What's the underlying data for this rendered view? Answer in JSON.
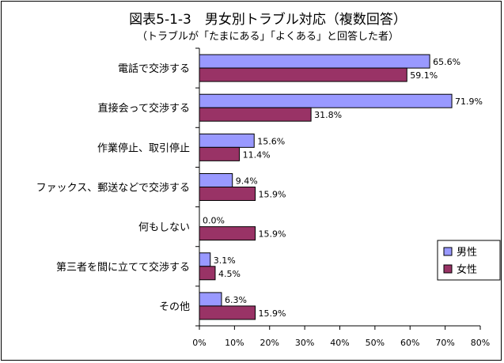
{
  "chart_data": {
    "type": "bar",
    "orientation": "horizontal",
    "title": "図表5-1-3　男女別トラブル対応（複数回答）",
    "subtitle": "（トラブルが「たまにある」「よくある」と回答した者）",
    "categories": [
      "電話で交渉する",
      "直接会って交渉する",
      "作業停止、取引停止",
      "ファックス、郵送などで交渉する",
      "何もしない",
      "第三者を間に立てて交渉する",
      "その他"
    ],
    "series": [
      {
        "name": "男性",
        "values": [
          65.6,
          71.9,
          15.6,
          9.4,
          0.0,
          3.1,
          6.3
        ],
        "labels": [
          "65.6%",
          "71.9%",
          "15.6%",
          "9.4%",
          "0.0%",
          "3.1%",
          "6.3%"
        ],
        "color": "#9999ff"
      },
      {
        "name": "女性",
        "values": [
          59.1,
          31.8,
          11.4,
          15.9,
          15.9,
          4.5,
          15.9
        ],
        "labels": [
          "59.1%",
          "31.8%",
          "11.4%",
          "15.9%",
          "15.9%",
          "4.5%",
          "15.9%"
        ],
        "color": "#993366"
      }
    ],
    "xlim": [
      0,
      80
    ],
    "xticks": [
      0,
      10,
      20,
      30,
      40,
      50,
      60,
      70,
      80
    ],
    "xtick_labels": [
      "0%",
      "10%",
      "20%",
      "30%",
      "40%",
      "50%",
      "60%",
      "70%",
      "80%"
    ],
    "grid": false,
    "legend_position": "right"
  }
}
